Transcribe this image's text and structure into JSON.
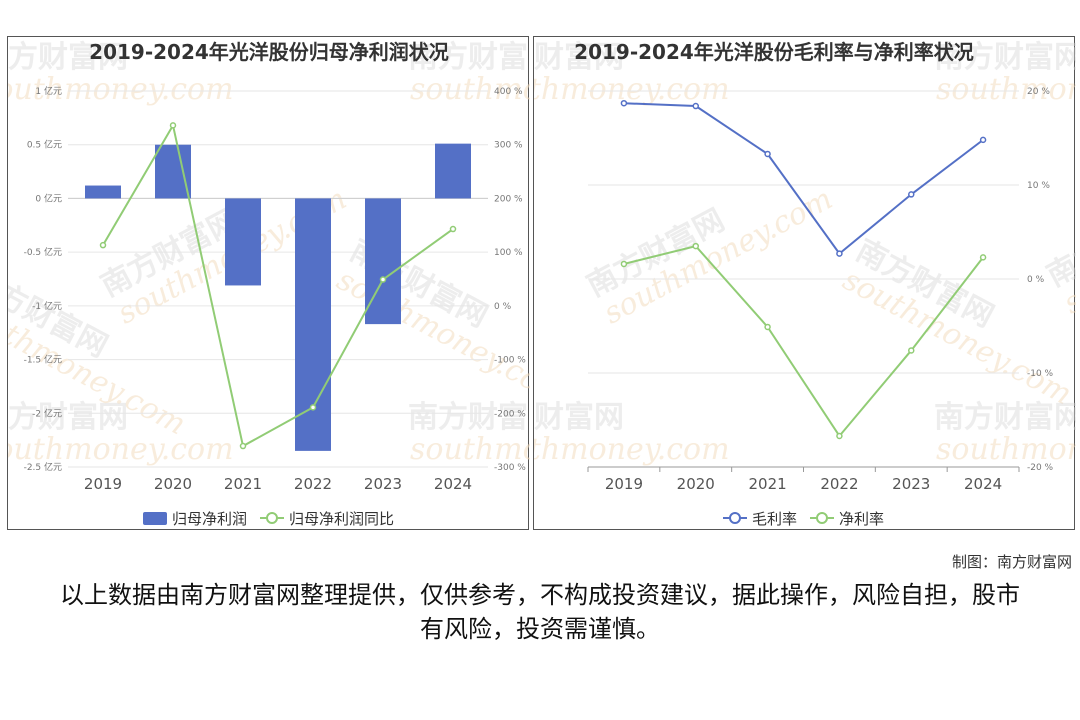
{
  "footer": {
    "credit": "制图：南方财富网",
    "disclaimer": "以上数据由南方财富网整理提供，仅供参考，不构成投资建议，据此操作，风险自担，股市有风险，投资需谨慎。"
  },
  "watermark": {
    "cn": "南方财富网",
    "en": "southmoney.com"
  },
  "chart_data": [
    {
      "type": "bar",
      "title": "2019-2024年光洋股份归母净利润状况",
      "categories": [
        "2019",
        "2020",
        "2021",
        "2022",
        "2023",
        "2024"
      ],
      "series": [
        {
          "name": "归母净利润",
          "type": "bar",
          "axis": "left",
          "color": "#5470c6",
          "values": [
            0.12,
            0.5,
            -0.81,
            -2.35,
            -1.17,
            0.51
          ]
        },
        {
          "name": "归母净利润同比",
          "type": "line",
          "axis": "right",
          "color": "#91cc75",
          "values": [
            113,
            336,
            -261,
            -189,
            49,
            143
          ]
        }
      ],
      "y_left": {
        "ticks": [
          1,
          0.5,
          0,
          -0.5,
          -1,
          -1.5,
          -2,
          -2.5
        ],
        "unit": "亿元",
        "range": [
          -2.5,
          1
        ]
      },
      "y_right": {
        "ticks": [
          400,
          300,
          200,
          100,
          0,
          -100,
          -200,
          -300
        ],
        "unit": "%",
        "range": [
          -300,
          400
        ]
      },
      "legend": "bottom-center",
      "grid": true
    },
    {
      "type": "line",
      "title": "2019-2024年光洋股份毛利率与净利率状况",
      "categories": [
        "2019",
        "2020",
        "2021",
        "2022",
        "2023",
        "2024"
      ],
      "series": [
        {
          "name": "毛利率",
          "color": "#5470c6",
          "values": [
            18.7,
            18.4,
            13.3,
            2.7,
            9.0,
            14.8
          ]
        },
        {
          "name": "净利率",
          "color": "#91cc75",
          "values": [
            1.6,
            3.5,
            -5.1,
            -16.7,
            -7.6,
            2.3
          ]
        }
      ],
      "y_right": {
        "ticks": [
          20,
          10,
          0,
          -10,
          -20
        ],
        "unit": "%",
        "range": [
          -20,
          20
        ]
      },
      "legend": "bottom-center",
      "grid": true
    }
  ]
}
